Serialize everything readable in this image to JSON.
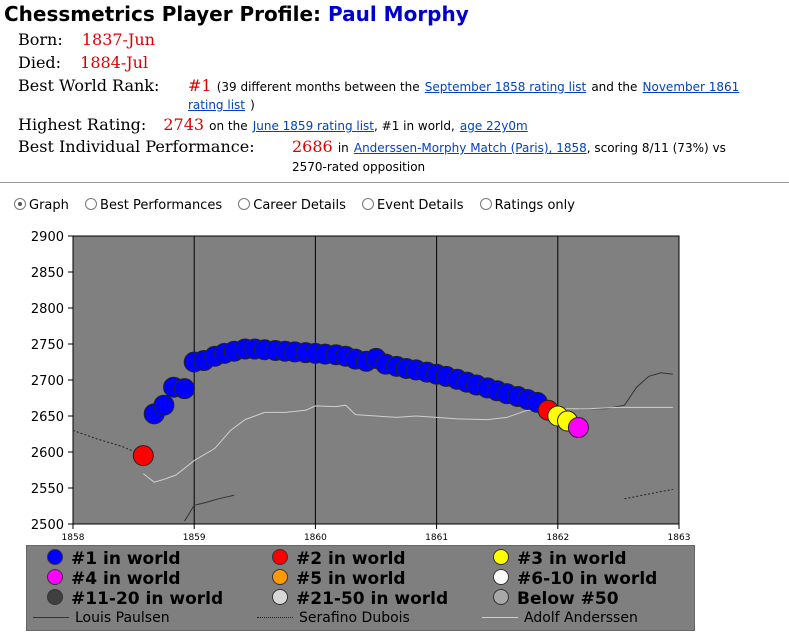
{
  "header": {
    "title_prefix": "Chessmetrics Player Profile:",
    "player_name": "Paul Morphy"
  },
  "born": {
    "label": "Born:",
    "value": "1837-Jun"
  },
  "died": {
    "label": "Died:",
    "value": "1884-Jul"
  },
  "best_rank": {
    "label": "Best World Rank:",
    "value": "#1",
    "text1": "(39 different months between the",
    "link1": "September 1858 rating list",
    "text2": "and the",
    "link2a": "November 1861",
    "link2b": "rating list",
    "text3": ")"
  },
  "highest_rating": {
    "label": "Highest Rating:",
    "value": "2743",
    "text1": "on the",
    "link1": "June 1859 rating list",
    "text2": ", #1 in world,",
    "link2": "age 22y0m"
  },
  "best_performance": {
    "label": "Best Individual Performance:",
    "value": "2686",
    "text1": "in",
    "link1": "Anderssen-Morphy Match (Paris), 1858",
    "text2": ", scoring 8/11 (73%) vs",
    "text3": "2570-rated opposition"
  },
  "view_options": [
    {
      "label": "Graph",
      "selected": true
    },
    {
      "label": "Best Performances",
      "selected": false
    },
    {
      "label": "Career Details",
      "selected": false
    },
    {
      "label": "Event Details",
      "selected": false
    },
    {
      "label": "Ratings only",
      "selected": false
    }
  ],
  "chart_data": {
    "type": "scatter",
    "x_ticks": [
      "1858",
      "1859",
      "1860",
      "1861",
      "1862",
      "1863"
    ],
    "y_ticks": [
      "2500",
      "2550",
      "2600",
      "2650",
      "2700",
      "2750",
      "2800",
      "2850",
      "2900"
    ],
    "xlim": [
      1858,
      1863
    ],
    "ylim": [
      2500,
      2900
    ],
    "plot_bg": "#808080",
    "morphy_points": [
      {
        "x": 1858.58,
        "y": 2595,
        "rank": "#2"
      },
      {
        "x": 1858.67,
        "y": 2653,
        "rank": "#1"
      },
      {
        "x": 1858.75,
        "y": 2665,
        "rank": "#1"
      },
      {
        "x": 1858.83,
        "y": 2690,
        "rank": "#1"
      },
      {
        "x": 1858.92,
        "y": 2688,
        "rank": "#1"
      },
      {
        "x": 1859.0,
        "y": 2725,
        "rank": "#1"
      },
      {
        "x": 1859.08,
        "y": 2727,
        "rank": "#1"
      },
      {
        "x": 1859.17,
        "y": 2733,
        "rank": "#1"
      },
      {
        "x": 1859.25,
        "y": 2737,
        "rank": "#1"
      },
      {
        "x": 1859.33,
        "y": 2740,
        "rank": "#1"
      },
      {
        "x": 1859.42,
        "y": 2743,
        "rank": "#1"
      },
      {
        "x": 1859.5,
        "y": 2743,
        "rank": "#1"
      },
      {
        "x": 1859.58,
        "y": 2742,
        "rank": "#1"
      },
      {
        "x": 1859.67,
        "y": 2741,
        "rank": "#1"
      },
      {
        "x": 1859.75,
        "y": 2740,
        "rank": "#1"
      },
      {
        "x": 1859.83,
        "y": 2739,
        "rank": "#1"
      },
      {
        "x": 1859.92,
        "y": 2738,
        "rank": "#1"
      },
      {
        "x": 1860.0,
        "y": 2737,
        "rank": "#1"
      },
      {
        "x": 1860.08,
        "y": 2736,
        "rank": "#1"
      },
      {
        "x": 1860.17,
        "y": 2735,
        "rank": "#1"
      },
      {
        "x": 1860.25,
        "y": 2733,
        "rank": "#1"
      },
      {
        "x": 1860.33,
        "y": 2729,
        "rank": "#1"
      },
      {
        "x": 1860.42,
        "y": 2726,
        "rank": "#1"
      },
      {
        "x": 1860.5,
        "y": 2730,
        "rank": "#1"
      },
      {
        "x": 1860.58,
        "y": 2722,
        "rank": "#1"
      },
      {
        "x": 1860.67,
        "y": 2719,
        "rank": "#1"
      },
      {
        "x": 1860.75,
        "y": 2716,
        "rank": "#1"
      },
      {
        "x": 1860.83,
        "y": 2714,
        "rank": "#1"
      },
      {
        "x": 1860.92,
        "y": 2711,
        "rank": "#1"
      },
      {
        "x": 1861.0,
        "y": 2708,
        "rank": "#1"
      },
      {
        "x": 1861.08,
        "y": 2705,
        "rank": "#1"
      },
      {
        "x": 1861.17,
        "y": 2701,
        "rank": "#1"
      },
      {
        "x": 1861.25,
        "y": 2697,
        "rank": "#1"
      },
      {
        "x": 1861.33,
        "y": 2693,
        "rank": "#1"
      },
      {
        "x": 1861.42,
        "y": 2689,
        "rank": "#1"
      },
      {
        "x": 1861.5,
        "y": 2685,
        "rank": "#1"
      },
      {
        "x": 1861.58,
        "y": 2681,
        "rank": "#1"
      },
      {
        "x": 1861.67,
        "y": 2677,
        "rank": "#1"
      },
      {
        "x": 1861.75,
        "y": 2673,
        "rank": "#1"
      },
      {
        "x": 1861.83,
        "y": 2669,
        "rank": "#1"
      },
      {
        "x": 1861.92,
        "y": 2658,
        "rank": "#2"
      },
      {
        "x": 1862.0,
        "y": 2650,
        "rank": "#3"
      },
      {
        "x": 1862.08,
        "y": 2643,
        "rank": "#3"
      },
      {
        "x": 1862.17,
        "y": 2634,
        "rank": "#4"
      }
    ],
    "lines": [
      {
        "name": "Louis Paulsen",
        "color": "#333333",
        "dash": "",
        "segments": [
          [
            [
              1858.92,
              2504
            ],
            [
              1859.0,
              2526
            ],
            [
              1859.1,
              2530
            ],
            [
              1859.2,
              2535
            ],
            [
              1859.33,
              2540
            ]
          ],
          [
            [
              1862.17,
              2660
            ],
            [
              1862.4,
              2660
            ],
            [
              1862.55,
              2665
            ],
            [
              1862.65,
              2690
            ],
            [
              1862.75,
              2705
            ],
            [
              1862.85,
              2710
            ],
            [
              1862.95,
              2708
            ]
          ]
        ]
      },
      {
        "name": "Serafino Dubois",
        "color": "#222222",
        "dash": "2,2",
        "segments": [
          [
            [
              1858.0,
              2630
            ],
            [
              1858.2,
              2618
            ],
            [
              1858.4,
              2608
            ],
            [
              1858.58,
              2595
            ]
          ],
          [
            [
              1862.55,
              2535
            ],
            [
              1862.7,
              2540
            ],
            [
              1862.85,
              2545
            ],
            [
              1862.95,
              2548
            ]
          ]
        ]
      },
      {
        "name": "Adolf Anderssen",
        "color": "#cfcfcf",
        "dash": "",
        "segments": [
          [
            [
              1858.58,
              2570
            ],
            [
              1858.67,
              2558
            ],
            [
              1858.75,
              2562
            ],
            [
              1858.85,
              2568
            ],
            [
              1859.0,
              2588
            ],
            [
              1859.17,
              2605
            ],
            [
              1859.3,
              2630
            ],
            [
              1859.42,
              2645
            ],
            [
              1859.58,
              2655
            ],
            [
              1859.75,
              2655
            ],
            [
              1859.92,
              2658
            ],
            [
              1860.0,
              2664
            ],
            [
              1860.17,
              2663
            ],
            [
              1860.25,
              2665
            ],
            [
              1860.33,
              2652
            ],
            [
              1860.5,
              2650
            ],
            [
              1860.67,
              2648
            ],
            [
              1860.83,
              2650
            ],
            [
              1861.0,
              2648
            ],
            [
              1861.17,
              2646
            ],
            [
              1861.42,
              2645
            ],
            [
              1861.58,
              2648
            ],
            [
              1861.75,
              2658
            ],
            [
              1862.0,
              2660
            ],
            [
              1862.25,
              2660
            ],
            [
              1862.5,
              2662
            ],
            [
              1862.75,
              2662
            ],
            [
              1862.95,
              2662
            ]
          ]
        ]
      }
    ]
  },
  "legend": {
    "entries": [
      {
        "label": "#1 in world",
        "color": "#0000ff"
      },
      {
        "label": "#2 in world",
        "color": "#ff0000"
      },
      {
        "label": "#3 in world",
        "color": "#ffff00"
      },
      {
        "label": "#4 in world",
        "color": "#ff00ff"
      },
      {
        "label": "#5 in world",
        "color": "#ff9900"
      },
      {
        "label": "#6-10 in world",
        "color": "#ffffff"
      },
      {
        "label": "#11-20 in world",
        "color": "#404040"
      },
      {
        "label": "#21-50 in world",
        "color": "#d8d8d8"
      },
      {
        "label": "Below #50",
        "color": "#a8a8a8"
      }
    ],
    "line_entries": [
      {
        "label": "Louis Paulsen",
        "style": "solid",
        "color": "#333333"
      },
      {
        "label": "Serafino Dubois",
        "style": "dotted",
        "color": "#222222"
      },
      {
        "label": "Adolf Anderssen",
        "style": "solid",
        "color": "#cfcfcf"
      }
    ]
  }
}
